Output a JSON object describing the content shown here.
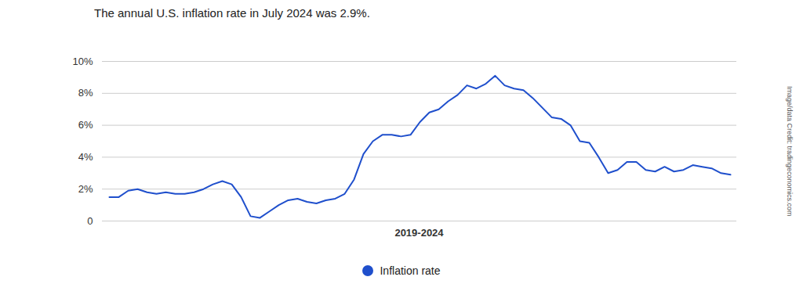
{
  "chart_data": {
    "type": "line",
    "title": "The annual U.S. inflation rate in July 2024 was 2.9%.",
    "x_label": "2019-2024",
    "annotation": "Image/data Credit: tradingeconomics.com",
    "categories": [
      null,
      null,
      null,
      null,
      null,
      null,
      null,
      null,
      null,
      null,
      null,
      null,
      null,
      null,
      null,
      null,
      null,
      null,
      null,
      null,
      null,
      null,
      null,
      null,
      null,
      null,
      null,
      null,
      null,
      null,
      null,
      null,
      null,
      null,
      null,
      null,
      null,
      null,
      null,
      null,
      null,
      null,
      null,
      null,
      null,
      null,
      null,
      null,
      null,
      null,
      null,
      null,
      null,
      null,
      null,
      null,
      null,
      null,
      null,
      null,
      null,
      null,
      null,
      null,
      null,
      null,
      null
    ],
    "series": [
      {
        "name": "Inflation rate",
        "color": "#1f4fcc",
        "values": [
          1.5,
          1.5,
          1.9,
          2.0,
          1.8,
          1.7,
          1.8,
          1.7,
          1.7,
          1.8,
          2.0,
          2.3,
          2.5,
          2.3,
          1.5,
          0.3,
          0.2,
          0.6,
          1.0,
          1.3,
          1.4,
          1.2,
          1.1,
          1.3,
          1.4,
          1.7,
          2.6,
          4.2,
          5.0,
          5.4,
          5.4,
          5.3,
          5.4,
          6.2,
          6.8,
          7.0,
          7.5,
          7.9,
          8.5,
          8.3,
          8.6,
          9.1,
          8.5,
          8.3,
          8.2,
          7.7,
          7.1,
          6.5,
          6.4,
          6.0,
          5.0,
          4.9,
          4.0,
          3.0,
          3.2,
          3.7,
          3.7,
          3.2,
          3.1,
          3.4,
          3.1,
          3.2,
          3.5,
          3.4,
          3.3,
          3.0,
          2.9
        ]
      }
    ],
    "ylim": [
      0,
      10
    ],
    "yticks": [
      0,
      {
        "value": 2,
        "label": "2%"
      },
      {
        "value": 4,
        "label": "4%"
      },
      {
        "value": 6,
        "label": "6%"
      },
      {
        "value": 8,
        "label": "8%"
      },
      {
        "value": 10,
        "label": "10%"
      }
    ],
    "grid": true,
    "legend": "bottom",
    "tick_labels": "y"
  }
}
